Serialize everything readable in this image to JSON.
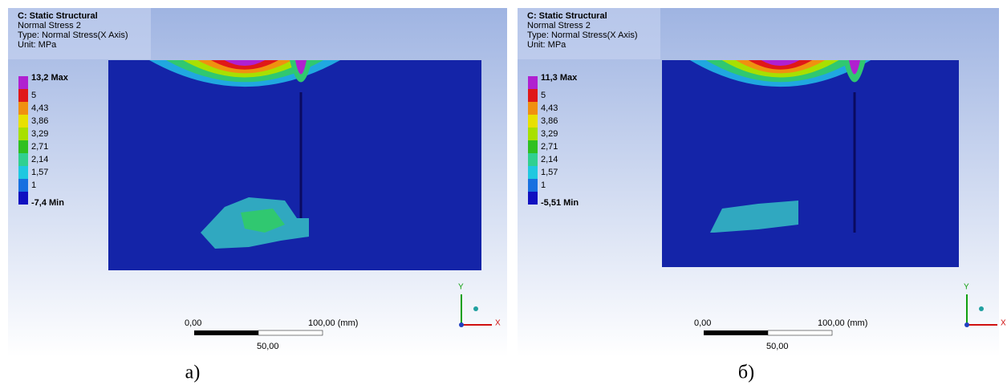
{
  "panels": [
    {
      "header": {
        "title": "C: Static Structural",
        "subtitle": "Normal Stress 2",
        "type": "Type: Normal Stress(X Axis)",
        "unit": "Unit: MPa"
      },
      "legend": [
        "13,2 Max",
        "5",
        "4,43",
        "3,86",
        "3,29",
        "2,71",
        "2,14",
        "1,57",
        "1",
        "-7,4 Min"
      ],
      "scale": {
        "start": "0,00",
        "end": "100,00 (mm)",
        "mid": "50,00"
      },
      "axes": {
        "y": "Y",
        "x": "X"
      },
      "caption": "а)"
    },
    {
      "header": {
        "title": "C: Static Structural",
        "subtitle": "Normal Stress 2",
        "type": "Type: Normal Stress(X Axis)",
        "unit": "Unit: MPa"
      },
      "legend": [
        "11,3 Max",
        "5",
        "4,43",
        "3,86",
        "3,29",
        "2,71",
        "2,14",
        "1,57",
        "1",
        "-5,51 Min"
      ],
      "scale": {
        "start": "0,00",
        "end": "100,00 (mm)",
        "mid": "50,00"
      },
      "axes": {
        "y": "Y",
        "x": "X"
      },
      "caption": "б)"
    }
  ]
}
